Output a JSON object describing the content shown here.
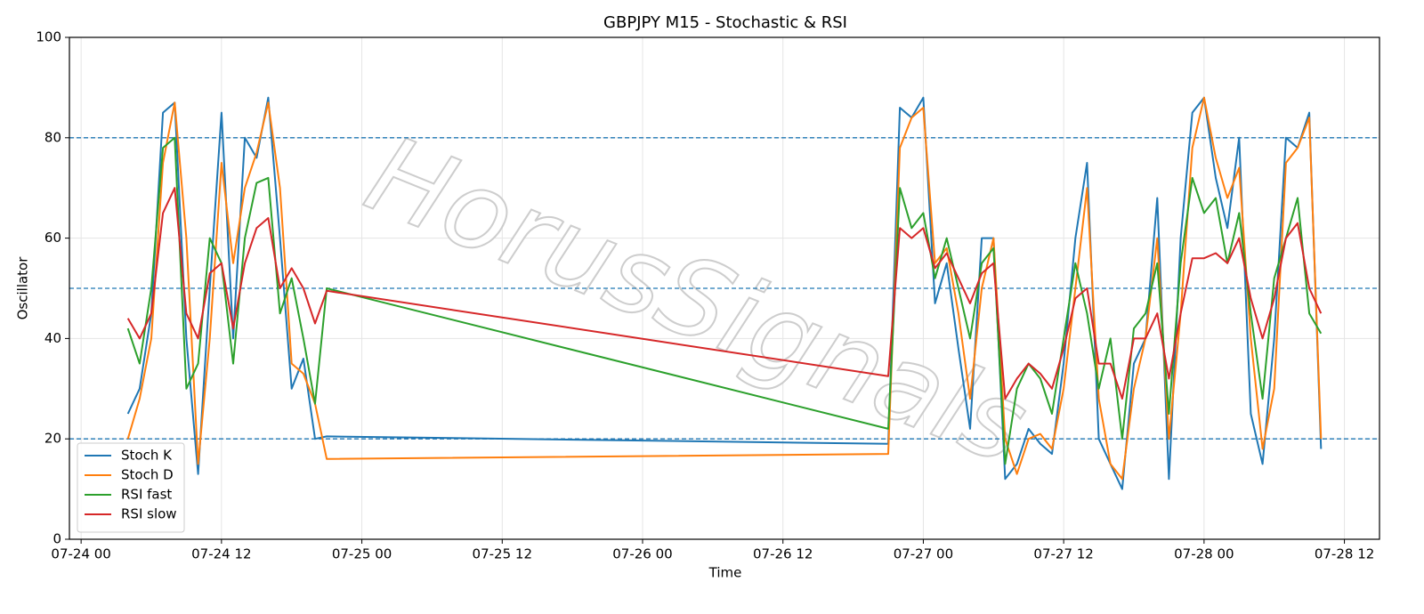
{
  "chart_data": {
    "type": "line",
    "title": "GBPJPY M15 - Stochastic & RSI",
    "xlabel": "Time",
    "ylabel": "Oscillator",
    "watermark": "HorusSignals",
    "x": [
      "07-24 04",
      "07-24 05",
      "07-24 06",
      "07-24 07",
      "07-24 08",
      "07-24 09",
      "07-24 10",
      "07-24 11",
      "07-24 12",
      "07-24 13",
      "07-24 14",
      "07-24 15",
      "07-24 16",
      "07-24 17",
      "07-24 18",
      "07-24 19",
      "07-24 20",
      "07-24 21",
      "07-26 21",
      "07-26 22",
      "07-26 23",
      "07-27 00",
      "07-27 01",
      "07-27 02",
      "07-27 03",
      "07-27 04",
      "07-27 05",
      "07-27 06",
      "07-27 07",
      "07-27 08",
      "07-27 09",
      "07-27 10",
      "07-27 11",
      "07-27 12",
      "07-27 13",
      "07-27 14",
      "07-27 15",
      "07-27 16",
      "07-27 17",
      "07-27 18",
      "07-27 19",
      "07-27 20",
      "07-27 21",
      "07-27 22",
      "07-27 23",
      "07-28 00",
      "07-28 01",
      "07-28 02",
      "07-28 03",
      "07-28 04",
      "07-28 05",
      "07-28 06",
      "07-28 07",
      "07-28 08",
      "07-28 09",
      "07-28 10"
    ],
    "series": [
      {
        "name": "Stoch K",
        "color": "#1f77b4",
        "values": [
          25,
          30,
          45,
          85,
          87,
          40,
          13,
          50,
          85,
          40,
          80,
          76,
          88,
          60,
          30,
          36,
          20,
          20.5,
          19,
          86,
          84,
          88,
          47,
          55,
          38,
          22,
          60,
          60,
          12,
          15,
          22,
          19,
          17,
          35,
          60,
          75,
          20,
          15,
          10,
          35,
          40,
          68,
          12,
          60,
          85,
          88,
          72,
          62,
          80,
          25,
          15,
          40,
          80,
          78,
          85,
          18
        ]
      },
      {
        "name": "Stoch D",
        "color": "#ff7f0e",
        "values": [
          20,
          28,
          40,
          75,
          87,
          60,
          15,
          40,
          75,
          55,
          70,
          77,
          87,
          70,
          35,
          33,
          27,
          16,
          17,
          78,
          84,
          86,
          55,
          58,
          45,
          28,
          50,
          60,
          20,
          13,
          20,
          21,
          18,
          30,
          50,
          70,
          28,
          15,
          12,
          30,
          40,
          60,
          20,
          45,
          78,
          88,
          76,
          68,
          74,
          40,
          18,
          30,
          75,
          78,
          84,
          20
        ]
      },
      {
        "name": "RSI fast",
        "color": "#2ca02c",
        "values": [
          42,
          35,
          50,
          78,
          80,
          30,
          35,
          60,
          55,
          35,
          60,
          71,
          72,
          45,
          52,
          40,
          27,
          50,
          22,
          70,
          62,
          65,
          52,
          60,
          50,
          40,
          55,
          58,
          15,
          30,
          35,
          32,
          25,
          40,
          55,
          45,
          30,
          40,
          20,
          42,
          45,
          55,
          25,
          55,
          72,
          65,
          68,
          55,
          65,
          45,
          28,
          52,
          60,
          68,
          45,
          41
        ]
      },
      {
        "name": "RSI slow",
        "color": "#d62728",
        "values": [
          44,
          40,
          45,
          65,
          70,
          45,
          40,
          53,
          55,
          42,
          55,
          62,
          64,
          50,
          54,
          50,
          43,
          49.5,
          32.5,
          62,
          60,
          62,
          54,
          57,
          52,
          47,
          53,
          55,
          28,
          32,
          35,
          33,
          30,
          38,
          48,
          50,
          35,
          35,
          28,
          40,
          40,
          45,
          32,
          45,
          56,
          56,
          57,
          55,
          60,
          48,
          40,
          48,
          60,
          63,
          50,
          45
        ]
      }
    ],
    "xlim": [
      "07-23 23",
      "07-28 15"
    ],
    "xticks": [
      "07-24 00",
      "07-24 12",
      "07-25 00",
      "07-25 12",
      "07-26 00",
      "07-26 12",
      "07-27 00",
      "07-27 12",
      "07-28 00",
      "07-28 12"
    ],
    "ylim": [
      0,
      100
    ],
    "yticks": [
      0,
      20,
      40,
      60,
      80,
      100
    ],
    "hlines": [
      20,
      50,
      80
    ],
    "hline_color": "#1f77b4",
    "grid": true,
    "legend": "lower left"
  }
}
